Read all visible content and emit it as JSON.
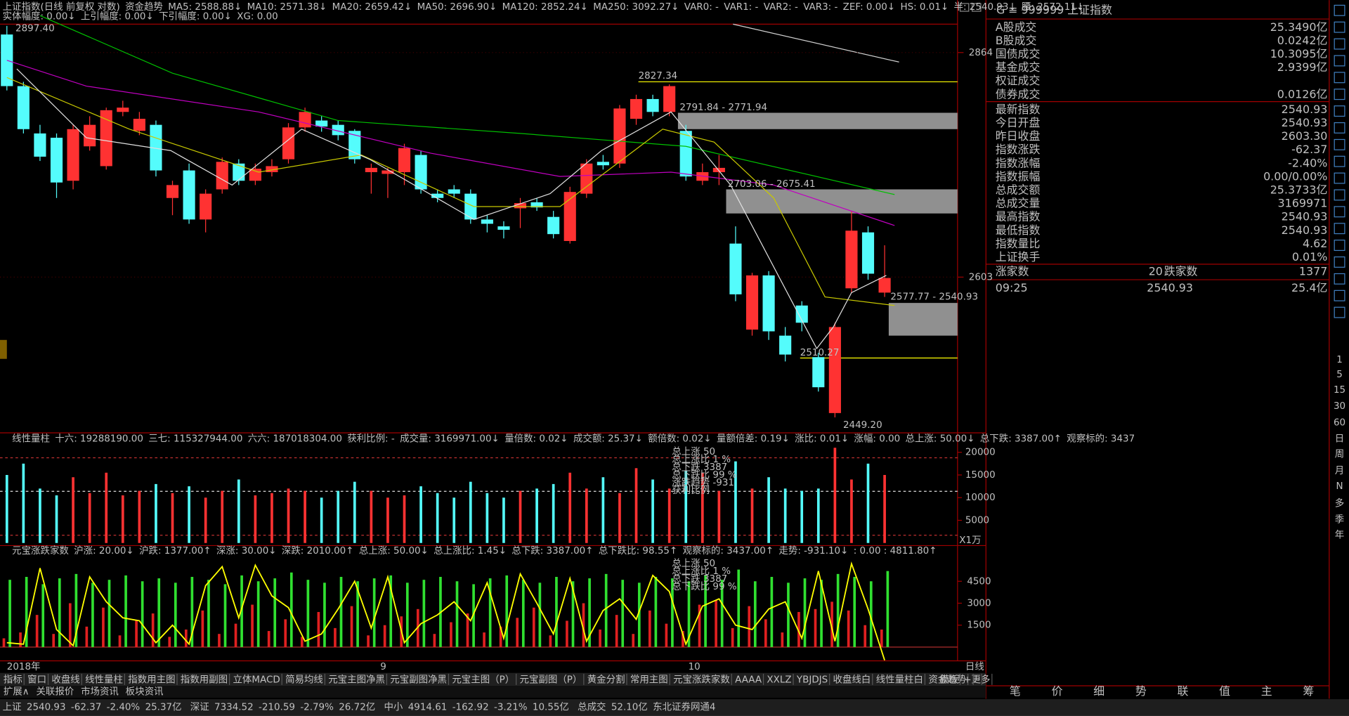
{
  "header": {
    "items": [
      {
        "text": "上证指数(日线 前复权 对数)",
        "color": "#c0c0c0"
      },
      {
        "text": "资金趋势",
        "color": "#c0c0c0"
      },
      {
        "text": "MA5: 2588.88↓",
        "color": "#ffffff"
      },
      {
        "text": "MA10: 2571.38↓",
        "color": "#ffff00"
      },
      {
        "text": "MA20: 2659.42↓",
        "color": "#ff00ff"
      },
      {
        "text": "MA50: 2696.90↓",
        "color": "#00ff00"
      },
      {
        "text": "MA120: 2852.24↓",
        "color": "#c0c0c0"
      },
      {
        "text": "MA250: 3092.27↓",
        "color": "#00c8c8"
      },
      {
        "text": "VAR0: -",
        "color": "#ff00ff"
      },
      {
        "text": "VAR1: -",
        "color": "#ff4040"
      },
      {
        "text": "VAR2: -",
        "color": "#ff00ff"
      },
      {
        "text": "VAR3: -",
        "color": "#ff4040"
      },
      {
        "text": "ZEF: 0.00↓",
        "color": "#ffffff"
      },
      {
        "text": "HS: 0.01↓",
        "color": "#ffffff"
      },
      {
        "text": "半: 2540.93↓",
        "color": "#ffffff"
      },
      {
        "text": "腰: 2572.11↓",
        "color": "#ffffff"
      }
    ],
    "items2": [
      {
        "text": "实体幅度: 0.00↓",
        "color": "#ffffff"
      },
      {
        "text": "上引幅度: 0.00↓",
        "color": "#ffffff"
      },
      {
        "text": "下引幅度: 0.00↓",
        "color": "#ffffff"
      },
      {
        "text": "XG: 0.00",
        "color": "#ffffff"
      }
    ]
  },
  "price_axis": {
    "ticks": [
      2864,
      2603
    ]
  },
  "annotations": [
    "2897.40",
    "2827.34",
    "2791.84 - 2771.94",
    "2703.06 - 2675.41",
    "2577.77 - 2540.93",
    "2510.27",
    "2449.20"
  ],
  "candles": [
    [
      2885,
      2825,
      2895,
      2820
    ],
    [
      2825,
      2775,
      2830,
      2770
    ],
    [
      2770,
      2743,
      2780,
      2738
    ],
    [
      2765,
      2713,
      2770,
      2695
    ],
    [
      2715,
      2775,
      2780,
      2705
    ],
    [
      2755,
      2780,
      2790,
      2750
    ],
    [
      2732,
      2797,
      2800,
      2728
    ],
    [
      2795,
      2800,
      2808,
      2790
    ],
    [
      2773,
      2787,
      2795,
      2768
    ],
    [
      2780,
      2727,
      2785,
      2720
    ],
    [
      2695,
      2710,
      2715,
      2675
    ],
    [
      2727,
      2670,
      2735,
      2665
    ],
    [
      2670,
      2700,
      2705,
      2655
    ],
    [
      2705,
      2737,
      2742,
      2700
    ],
    [
      2735,
      2715,
      2740,
      2710
    ],
    [
      2715,
      2729,
      2735,
      2710
    ],
    [
      2725,
      2732,
      2740,
      2720
    ],
    [
      2740,
      2777,
      2782,
      2735
    ],
    [
      2777,
      2795,
      2800,
      2772
    ],
    [
      2785,
      2778,
      2790,
      2772
    ],
    [
      2780,
      2768,
      2785,
      2762
    ],
    [
      2773,
      2740,
      2775,
      2735
    ],
    [
      2725,
      2730,
      2735,
      2700
    ],
    [
      2723,
      2727,
      2730,
      2695
    ],
    [
      2725,
      2753,
      2758,
      2710
    ],
    [
      2745,
      2705,
      2750,
      2700
    ],
    [
      2700,
      2695,
      2705,
      2690
    ],
    [
      2705,
      2700,
      2710,
      2695
    ],
    [
      2700,
      2670,
      2705,
      2665
    ],
    [
      2670,
      2665,
      2675,
      2655
    ],
    [
      2662,
      2658,
      2668,
      2648
    ],
    [
      2683,
      2689,
      2695,
      2660
    ],
    [
      2690,
      2684,
      2695,
      2680
    ],
    [
      2673,
      2653,
      2680,
      2648
    ],
    [
      2645,
      2702,
      2708,
      2642
    ],
    [
      2700,
      2735,
      2740,
      2695
    ],
    [
      2737,
      2733,
      2745,
      2728
    ],
    [
      2735,
      2799,
      2803,
      2730
    ],
    [
      2787,
      2810,
      2815,
      2780
    ],
    [
      2810,
      2795,
      2815,
      2790
    ],
    [
      2795,
      2825,
      2827,
      2790
    ],
    [
      2773,
      2720,
      2780,
      2715
    ],
    [
      2715,
      2725,
      2735,
      2710
    ],
    [
      2725,
      2730,
      2745,
      2710
    ],
    [
      2642,
      2583,
      2662,
      2575
    ],
    [
      2542,
      2605,
      2608,
      2535
    ],
    [
      2605,
      2540,
      2610,
      2530
    ],
    [
      2535,
      2513,
      2545,
      2505
    ],
    [
      2570,
      2550,
      2575,
      2540
    ],
    [
      2510,
      2475,
      2515,
      2470
    ],
    [
      2445,
      2545,
      2550,
      2440
    ],
    [
      2590,
      2657,
      2680,
      2585
    ],
    [
      2655,
      2607,
      2662,
      2600
    ],
    [
      2585,
      2602,
      2640,
      2580
    ]
  ],
  "ma": [
    {
      "color": "#00c000",
      "x": [
        2,
        10,
        20,
        31,
        41,
        53.6
      ],
      "y": [
        2907,
        2840,
        2785,
        2770,
        2755,
        2699
      ]
    },
    {
      "color": "#c000c0",
      "x": [
        0,
        4.8,
        15.2,
        25.6,
        33.4,
        40.1,
        46.3,
        53.6
      ],
      "y": [
        2855,
        2825,
        2795,
        2747,
        2720,
        2725,
        2710,
        2663
      ]
    },
    {
      "color": "#c8c800",
      "x": [
        0,
        7.4,
        15.2,
        21.4,
        28.2,
        33.4,
        39.6,
        42.7,
        46.3,
        49.4,
        53.6
      ],
      "y": [
        2835,
        2775,
        2725,
        2745,
        2685,
        2685,
        2775,
        2760,
        2695,
        2580,
        2570
      ]
    },
    {
      "color": "#e0e0e0",
      "x": [
        0.6,
        4.8,
        9.9,
        13.6,
        17.8,
        21.9,
        28.2,
        32.8,
        35.9,
        40.1,
        43.7,
        48.9,
        49.9,
        51,
        53.1
      ],
      "y": [
        2845,
        2765,
        2750,
        2710,
        2775,
        2740,
        2670,
        2700,
        2750,
        2795,
        2710,
        2520,
        2545,
        2585,
        2605
      ]
    }
  ],
  "volume": {
    "header": [
      {
        "text": "线性量柱",
        "color": "#c0c0c0"
      },
      {
        "text": "十六: 19288190.00",
        "color": "#ffffff"
      },
      {
        "text": "三七: 115327944.00",
        "color": "#ffffff"
      },
      {
        "text": "六六: 187018304.00",
        "color": "#ff3030"
      },
      {
        "text": "获利比例: -",
        "color": "#ffffff"
      },
      {
        "text": "成交量: 3169971.00↓",
        "color": "#ffffff"
      },
      {
        "text": "量倍数: 0.02↓",
        "color": "#ffffff"
      },
      {
        "text": "成交额: 25.37↓",
        "color": "#ffffff"
      },
      {
        "text": "额倍数: 0.02↓",
        "color": "#ffffff"
      },
      {
        "text": "量额倍差: 0.19↓",
        "color": "#ffffff"
      },
      {
        "text": "涨比: 0.01↓",
        "color": "#ffffff"
      },
      {
        "text": "涨幅: 0.00",
        "color": "#ffffff"
      },
      {
        "text": "总上涨: 50.00↓",
        "color": "#ff3030"
      },
      {
        "text": "总下跌: 3387.00↑",
        "color": "#00ff00"
      },
      {
        "text": "观察标的: 3437",
        "color": "#ffffff"
      }
    ],
    "ticks": [
      20000,
      15000,
      10000,
      5000
    ],
    "unit": "X1万",
    "overlay": [
      {
        "text": "总上涨 50",
        "color": "#ff3030"
      },
      {
        "text": "总上涨比 1 %",
        "color": "#ff3030"
      },
      {
        "text": "总下跌 3387",
        "color": "#00ff00"
      },
      {
        "text": "总下跌比 99 %",
        "color": "#00ff00"
      },
      {
        "text": "涨跌趋势 -931",
        "color": "#ffff00"
      },
      {
        "text": "获利比例",
        "color": "#c0c0c0"
      }
    ],
    "values": [
      15000,
      17500,
      12000,
      10500,
      14500,
      11000,
      15500,
      10500,
      11500,
      13000,
      11000,
      12500,
      10000,
      11500,
      14000,
      10500,
      11000,
      12000,
      11500,
      10000,
      11500,
      13500,
      11500,
      10000,
      10500,
      12500,
      11000,
      10000,
      13500,
      11000,
      10000,
      11500,
      12000,
      13000,
      15500,
      12000,
      14500,
      11000,
      16500,
      14000,
      12000,
      16000,
      15500,
      11500,
      18000,
      12000,
      14500,
      12000,
      11500,
      12000,
      21000,
      14000,
      17500,
      15000
    ]
  },
  "breadth": {
    "header": [
      {
        "text": "元宝涨跌家数",
        "color": "#c0c0c0"
      },
      {
        "text": "沪涨: 20.00↓",
        "color": "#ff3030"
      },
      {
        "text": "沪跌: 1377.00↑",
        "color": "#00ff00"
      },
      {
        "text": "深涨: 30.00↓",
        "color": "#ff3030"
      },
      {
        "text": "深跌: 2010.00↑",
        "color": "#00ff00"
      },
      {
        "text": "总上涨: 50.00↓",
        "color": "#ff3030"
      },
      {
        "text": "总上涨比: 1.45↓",
        "color": "#ff3030"
      },
      {
        "text": "总下跌: 3387.00↑",
        "color": "#00ff00"
      },
      {
        "text": "总下跌比: 98.55↑",
        "color": "#00ff00"
      },
      {
        "text": "观察标的: 3437.00↑",
        "color": "#ffffff"
      },
      {
        "text": "走势: -931.10↓",
        "color": "#ffff00"
      },
      {
        "text": ": 0.00 : 4811.80↑",
        "color": "#ffffff"
      }
    ],
    "ticks": [
      4500,
      3000,
      1500
    ],
    "overlay": [
      {
        "text": "总上涨 50",
        "color": "#ff3030"
      },
      {
        "text": "总上涨比 1 %",
        "color": "#ff3030"
      },
      {
        "text": "总下跌 3387",
        "color": "#00ff00"
      },
      {
        "text": "总下跌比 99 %",
        "color": "#00ff00"
      }
    ],
    "green": [
      4600,
      4800,
      4300,
      4700,
      5000,
      4400,
      4600,
      4900,
      4500,
      4700,
      4400,
      4800,
      4600,
      4300,
      4900,
      4500,
      4700,
      5100,
      4600,
      4400,
      4800,
      4500,
      4700,
      4900,
      4400,
      4600,
      4800,
      4500,
      4300,
      4700,
      4900,
      4600,
      4400,
      4800,
      4500,
      4700,
      5000,
      4600,
      4400,
      4800,
      4700,
      4500,
      4900,
      4600,
      5300,
      4500,
      4800,
      4400,
      4700,
      4600,
      5000,
      4800,
      4500,
      5200
    ],
    "red": [
      600,
      1000,
      2200,
      900,
      3000,
      1400,
      2700,
      800,
      1800,
      2300,
      700,
      1200,
      2500,
      900,
      1600,
      2900,
      1100,
      1900,
      700,
      2400,
      1300,
      2800,
      800,
      1500,
      2100,
      2600,
      900,
      1700,
      2300,
      1000,
      1400,
      2000,
      2700,
      800,
      1800,
      3000,
      1200,
      2200,
      900,
      2500,
      1600,
      1100,
      2900,
      3200,
      1300,
      2800,
      1900,
      1000,
      2400,
      2600,
      3100,
      2500,
      1500,
      1200
    ],
    "trend": [
      300,
      200,
      5400,
      1200,
      100,
      4800,
      3100,
      2000,
      1800,
      300,
      1500,
      200,
      4200,
      5500,
      2000,
      5600,
      3500,
      2700,
      400,
      900,
      2600,
      4500,
      1300,
      4800,
      300,
      1600,
      2200,
      3100,
      1800,
      4400,
      600,
      5000,
      3000,
      900,
      4700,
      400,
      2500,
      3300,
      1900,
      4900,
      3800,
      200,
      2800,
      3300,
      1500,
      1200,
      2600,
      3100,
      600,
      5200,
      400,
      5700,
      2600,
      -900
    ]
  },
  "date_axis": {
    "labels": [
      "2018年",
      "9",
      "10"
    ],
    "unit": "日线"
  },
  "tabs": [
    "指标",
    "窗口",
    "收盘线",
    "线性量柱",
    "指数用主图",
    "指数用副图",
    "立体MACD",
    "简易均线",
    "元宝主图净黑",
    "元宝副图净黑",
    "元宝主图（P）",
    "元宝副图（P）",
    "黄金分割",
    "常用主图",
    "元宝涨跌家数",
    "AAAA",
    "XXLZ",
    "YBJDJS",
    "收盘线白",
    "线性量柱白",
    "资金趋势",
    "更多",
    "模板",
    "+",
    "-"
  ],
  "tabs2": [
    "扩展∧",
    "关联报价",
    "市场资讯",
    "板块资讯"
  ],
  "status": [
    {
      "text": "上证",
      "color": "#ffffff"
    },
    {
      "text": "2540.93",
      "color": "#00ff00"
    },
    {
      "text": "-62.37",
      "color": "#00ff00"
    },
    {
      "text": "-2.40%",
      "color": "#00ff00"
    },
    {
      "text": "25.37亿",
      "color": "#ffffff"
    },
    {
      "text": "深证",
      "color": "#ffffff"
    },
    {
      "text": "7334.52",
      "color": "#00ff00"
    },
    {
      "text": "-210.59",
      "color": "#00ff00"
    },
    {
      "text": "-2.79%",
      "color": "#00ff00"
    },
    {
      "text": "26.72亿",
      "color": "#ffffff"
    },
    {
      "text": "中小",
      "color": "#ffffff"
    },
    {
      "text": "4914.61",
      "color": "#00ff00"
    },
    {
      "text": "-162.92",
      "color": "#00ff00"
    },
    {
      "text": "-3.21%",
      "color": "#00ff00"
    },
    {
      "text": "10.55亿",
      "color": "#ffffff"
    },
    {
      "text": "总成交",
      "color": "#ffffff"
    },
    {
      "text": "52.10亿",
      "color": "#ffffff"
    },
    {
      "text": "东北证券网通4",
      "color": "#ffffff"
    }
  ],
  "quote": {
    "code": "G",
    "title": "≡ 999999 上证指数",
    "rows": [
      {
        "label": "A股成交",
        "value": "25.3490亿",
        "color": "#ffff00"
      },
      {
        "label": "B股成交",
        "value": "0.0242亿",
        "color": "#ffff00"
      },
      {
        "label": "国债成交",
        "value": "10.3095亿",
        "color": "#ffff00"
      },
      {
        "label": "基金成交",
        "value": "2.9399亿",
        "color": "#ffff00"
      },
      {
        "label": "权证成交"
      },
      {
        "label": "债券成交",
        "value": "0.0126亿",
        "color": "#ffff00"
      },
      {
        "label": "最新指数",
        "value": "2540.93",
        "color": "#00ff00"
      },
      {
        "label": "今日开盘",
        "value": "2540.93",
        "color": "#00ff00"
      },
      {
        "label": "昨日收盘",
        "value": "2603.30",
        "color": "#ffffff"
      },
      {
        "label": "指数涨跌",
        "value": "-62.37",
        "color": "#00ff00"
      },
      {
        "label": "指数涨幅",
        "value": "-2.40%",
        "color": "#00ff00"
      },
      {
        "label": "指数振幅",
        "value": "0.00/0.00%",
        "color": "#ffffff"
      },
      {
        "label": "总成交额",
        "value": "25.3733亿",
        "color": "#ffff00"
      },
      {
        "label": "总成交量",
        "value": "3169971",
        "color": "#ffff00"
      },
      {
        "label": "最高指数",
        "value": "2540.93",
        "color": "#00ff00"
      },
      {
        "label": "最低指数",
        "value": "2540.93",
        "color": "#00ff00"
      },
      {
        "label": "指数量比",
        "value": "4.62",
        "color": "#ff40ff"
      },
      {
        "label": "上证换手",
        "value": "0.01%",
        "color": "#ffffff"
      }
    ],
    "up_label": "涨家数",
    "up": "20",
    "down_label": "跌家数",
    "down": "1377",
    "tick": {
      "time": "09:25",
      "price": "2540.93",
      "amount": "25.4亿"
    },
    "tabs": [
      "笔",
      "价",
      "细",
      "势",
      "联",
      "值",
      "主",
      "筹"
    ]
  },
  "periods": [
    "1",
    "5",
    "15",
    "30",
    "60",
    "日",
    "周",
    "月",
    "N",
    "多",
    "季",
    "年"
  ]
}
